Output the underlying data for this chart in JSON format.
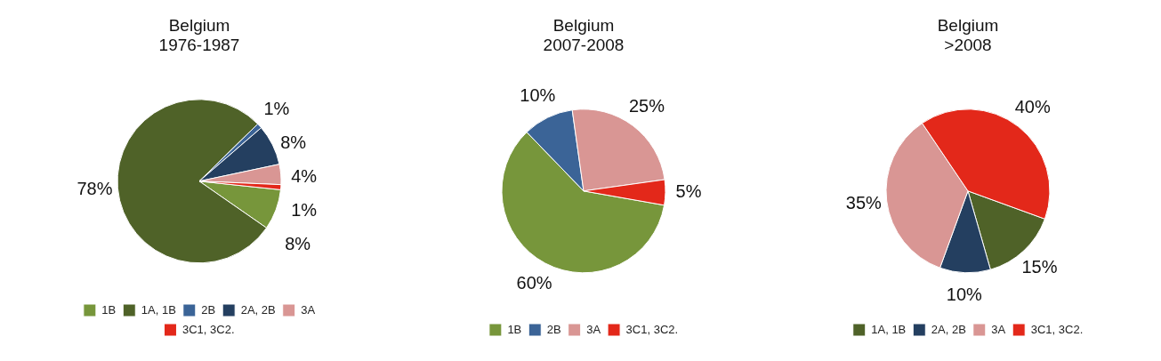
{
  "chart_data": [
    {
      "type": "pie",
      "title": "Belgium",
      "subtitle": "1976-1987",
      "categories": [
        "1B",
        "1A, 1B",
        "2B",
        "2A, 2B",
        "3A",
        "3C1, 3C2."
      ],
      "values": [
        8,
        78,
        1,
        8,
        4,
        1
      ],
      "colors": [
        "#77963b",
        "#4f6228",
        "#3b6497",
        "#243f60",
        "#d99694",
        "#e3281a"
      ],
      "value_labels": [
        "8%",
        "78%",
        "1%",
        "8%",
        "4%",
        "1%"
      ],
      "legend": "bottom"
    },
    {
      "type": "pie",
      "title": "Belgium",
      "subtitle": "2007-2008",
      "categories": [
        "1B",
        "2B",
        "3A",
        "3C1, 3C2."
      ],
      "values": [
        60,
        10,
        25,
        5
      ],
      "colors": [
        "#77963b",
        "#3b6497",
        "#d99694",
        "#e3281a"
      ],
      "value_labels": [
        "60%",
        "10%",
        "25%",
        "5%"
      ],
      "legend": "bottom"
    },
    {
      "type": "pie",
      "title": "Belgium",
      "subtitle": ">2008",
      "categories": [
        "1A, 1B",
        "2A, 2B",
        "3A",
        "3C1, 3C2."
      ],
      "values": [
        15,
        10,
        35,
        40
      ],
      "colors": [
        "#4f6228",
        "#243f60",
        "#d99694",
        "#e3281a"
      ],
      "value_labels": [
        "15%",
        "10%",
        "35%",
        "40%"
      ],
      "legend": "bottom"
    }
  ]
}
